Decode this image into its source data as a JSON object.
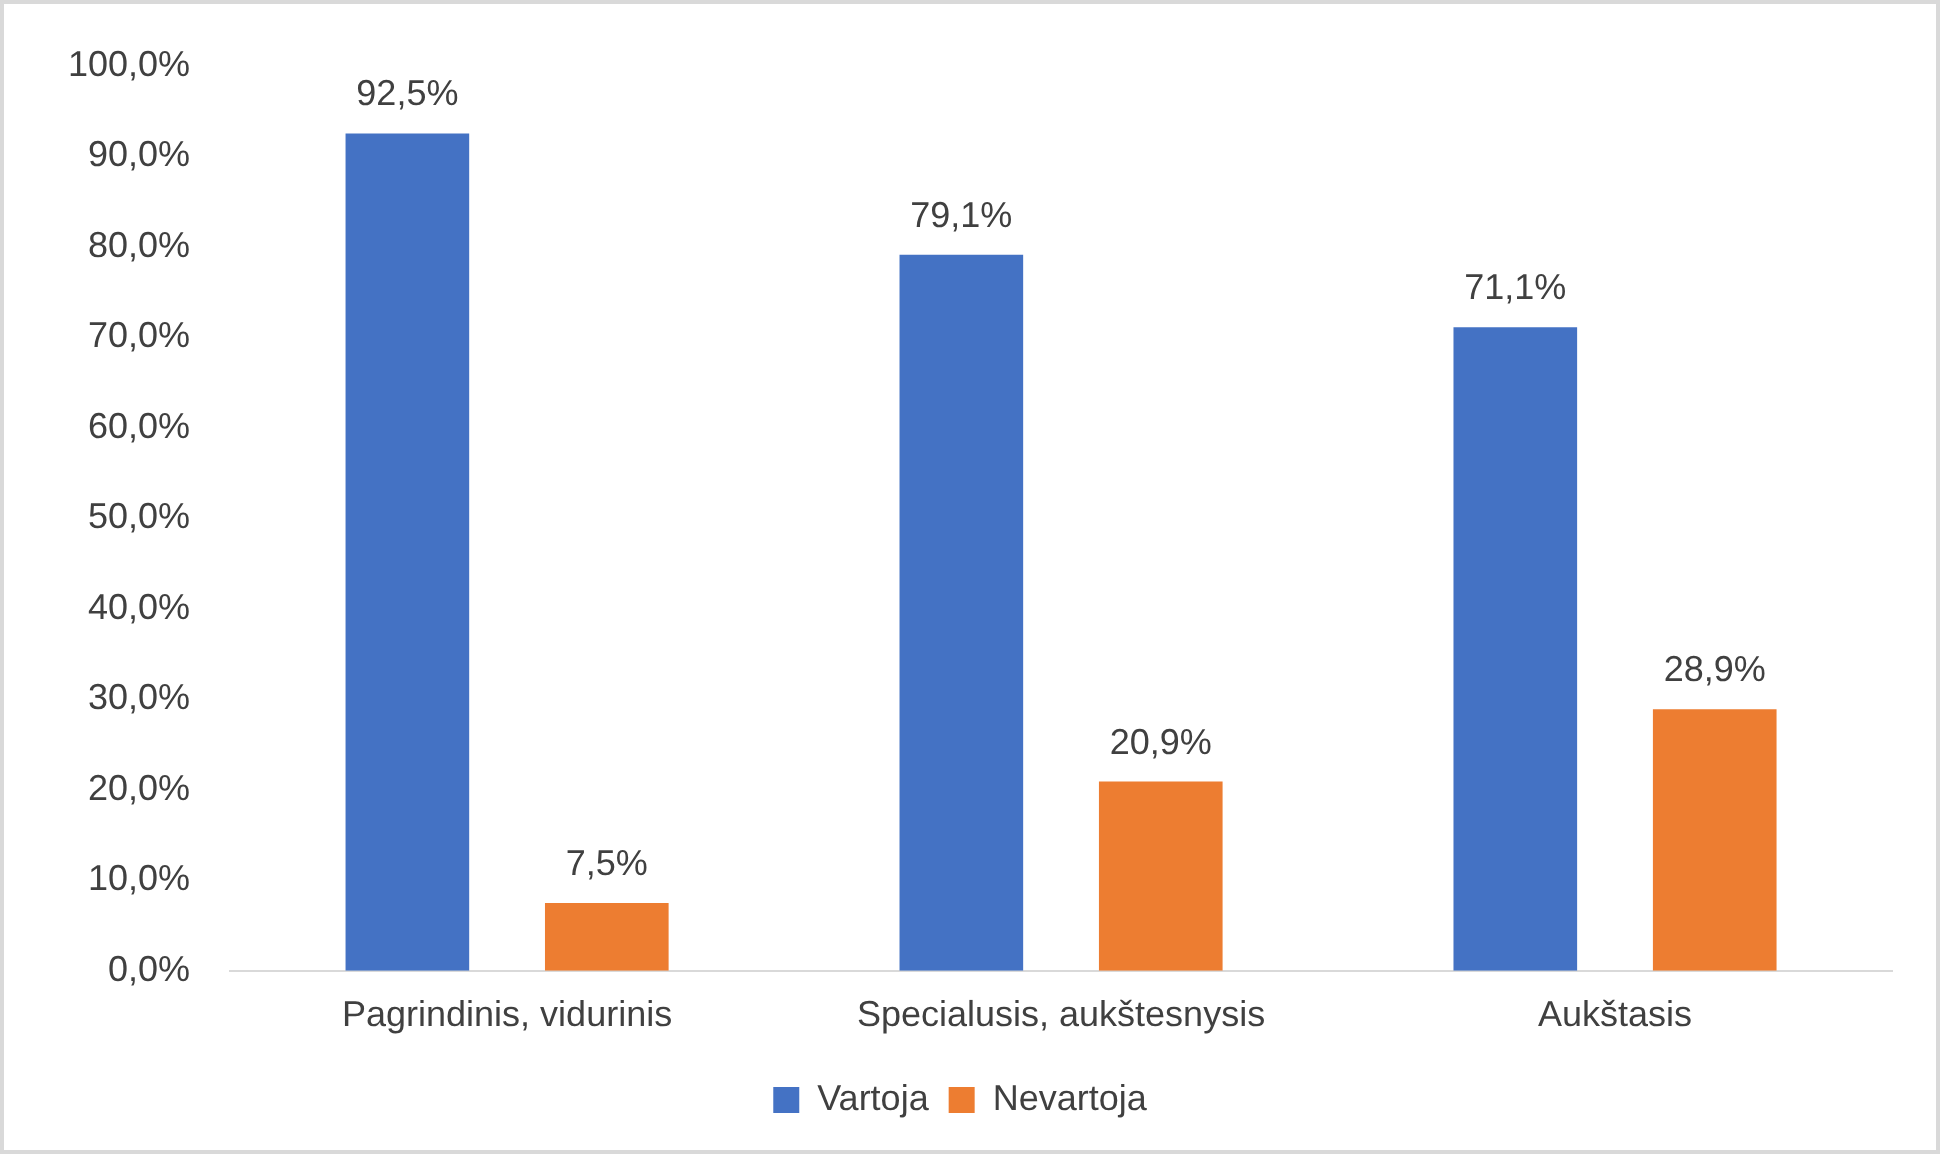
{
  "chart_data": {
    "type": "bar",
    "categories": [
      "Pagrindinis, vidurinis",
      "Specialusis, aukštesnysis",
      "Aukštasis"
    ],
    "series": [
      {
        "name": "Vartoja",
        "color": "#4472c4",
        "values": [
          92.5,
          79.1,
          71.1
        ],
        "value_labels": [
          "92,5%",
          "79,1%",
          "71,1%"
        ]
      },
      {
        "name": "Nevartoja",
        "color": "#ed7d31",
        "values": [
          7.5,
          20.9,
          28.9
        ],
        "value_labels": [
          "7,5%",
          "20,9%",
          "28,9%"
        ]
      }
    ],
    "ylim": [
      0,
      100
    ],
    "yticks": [
      {
        "value": 0,
        "label": "0,0%"
      },
      {
        "value": 10,
        "label": "10,0%"
      },
      {
        "value": 20,
        "label": "20,0%"
      },
      {
        "value": 30,
        "label": "30,0%"
      },
      {
        "value": 40,
        "label": "40,0%"
      },
      {
        "value": 50,
        "label": "50,0%"
      },
      {
        "value": 60,
        "label": "60,0%"
      },
      {
        "value": 70,
        "label": "70,0%"
      },
      {
        "value": 80,
        "label": "80,0%"
      },
      {
        "value": 90,
        "label": "90,0%"
      },
      {
        "value": 100,
        "label": "100,0%"
      }
    ],
    "grid": false,
    "legend": "bottom"
  }
}
